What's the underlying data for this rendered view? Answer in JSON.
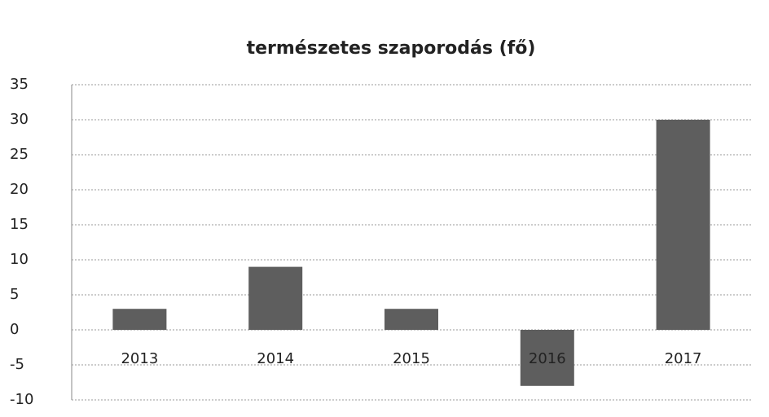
{
  "chart_data": {
    "type": "bar",
    "title": "természetes szaporodás (fő)",
    "categories": [
      "2013",
      "2014",
      "2015",
      "2016",
      "2017"
    ],
    "values": [
      3,
      9,
      3,
      -8,
      30
    ],
    "color": "#5e5e5e",
    "ylim": [
      -10,
      35
    ],
    "yticks": [
      -10,
      -5,
      0,
      5,
      10,
      15,
      20,
      25,
      30,
      35
    ],
    "grid": true
  }
}
